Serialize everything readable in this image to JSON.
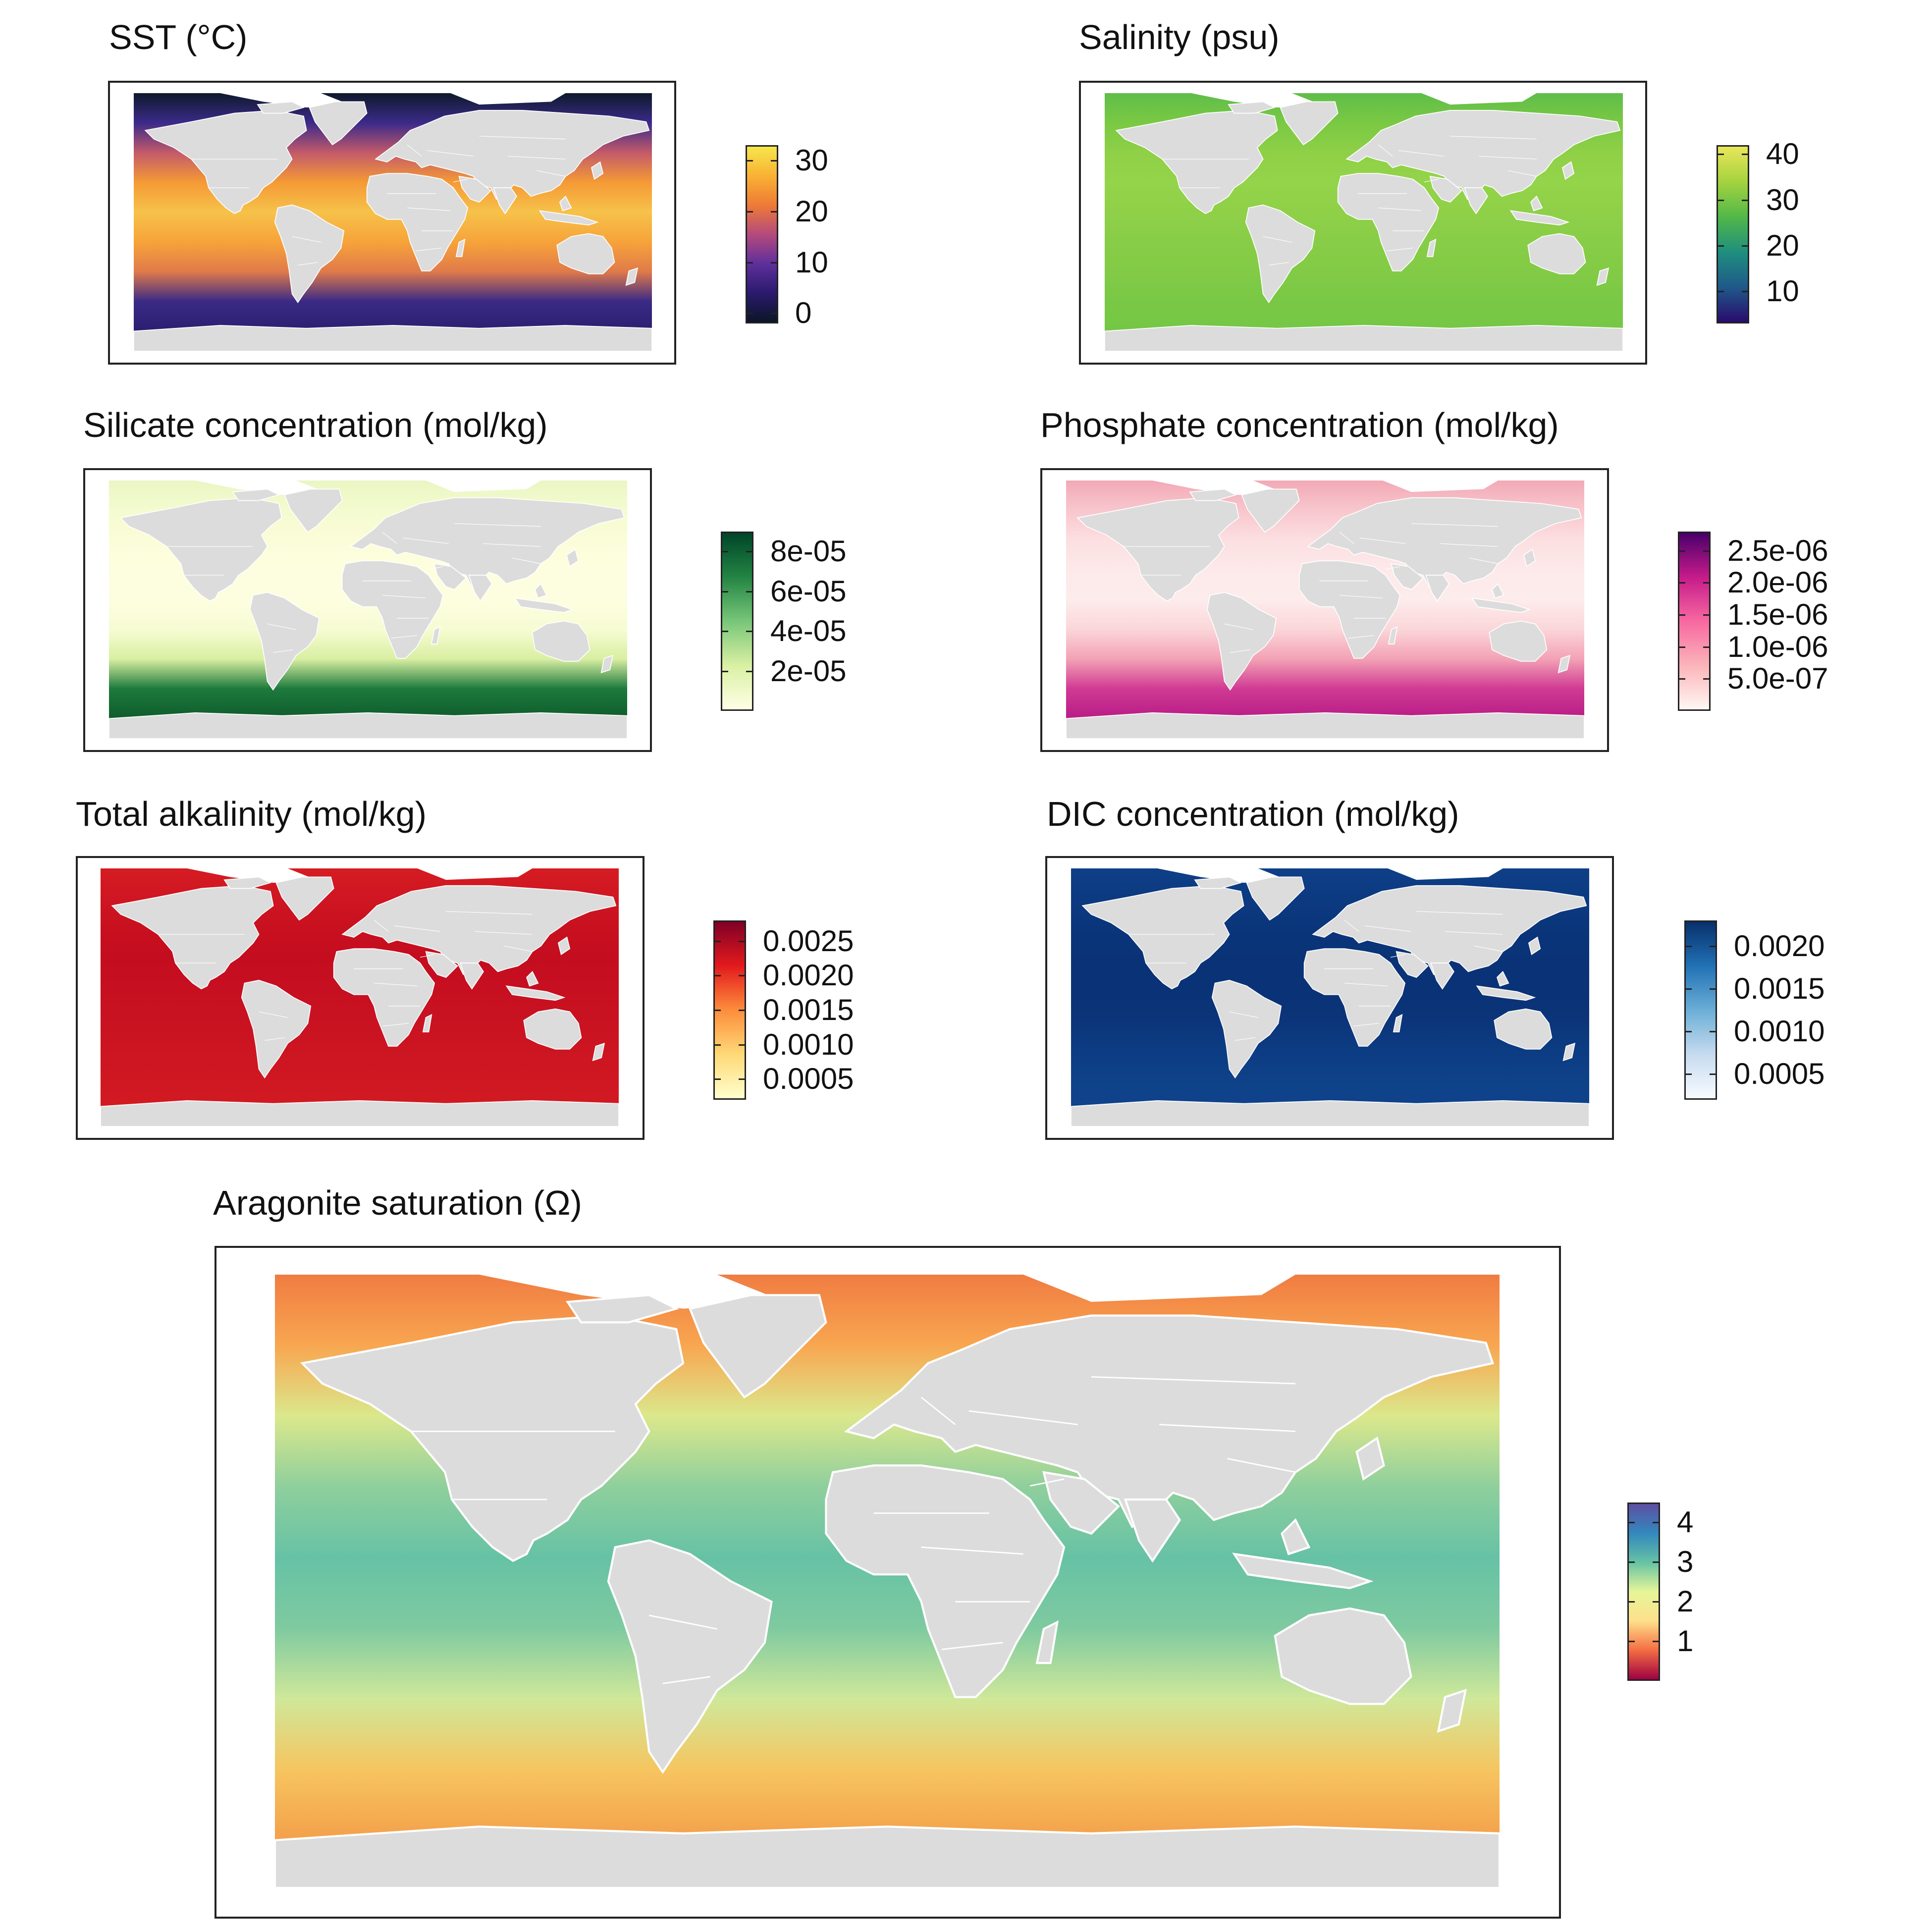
{
  "panels": [
    {
      "id": "sst",
      "title": "SST (°C)",
      "legend": {
        "ticks": [
          "30",
          "20",
          "10",
          "0"
        ],
        "values": [
          30,
          20,
          10,
          0
        ],
        "range": [
          -2,
          33
        ],
        "colors": [
          "#0b1526",
          "#2b1a6e",
          "#5f2f9c",
          "#b54a7c",
          "#ee7a35",
          "#f9b234",
          "#f6e64a"
        ]
      }
    },
    {
      "id": "salinity",
      "title": "Salinity (psu)",
      "legend": {
        "ticks": [
          "40",
          "30",
          "20",
          "10"
        ],
        "values": [
          40,
          30,
          20,
          10
        ],
        "range": [
          3,
          42
        ],
        "colors": [
          "#2a0b6e",
          "#1f5a8a",
          "#1f8f7e",
          "#52b848",
          "#a5d33f",
          "#e9e65a"
        ]
      }
    },
    {
      "id": "silicate",
      "title": "Silicate concentration (mol/kg)",
      "legend": {
        "ticks": [
          "8e-05",
          "6e-05",
          "4e-05",
          "2e-05"
        ],
        "values": [
          8e-05,
          6e-05,
          4e-05,
          2e-05
        ],
        "range": [
          0,
          9e-05
        ],
        "colors": [
          "#ffffe5",
          "#d9f0a3",
          "#78c679",
          "#238443",
          "#004529"
        ]
      }
    },
    {
      "id": "phosphate",
      "title": "Phosphate concentration (mol/kg)",
      "legend": {
        "ticks": [
          "2.5e-06",
          "2.0e-06",
          "1.5e-06",
          "1.0e-06",
          "5.0e-07"
        ],
        "values": [
          2.5e-06,
          2e-06,
          1.5e-06,
          1e-06,
          5e-07
        ],
        "range": [
          0,
          2.8e-06
        ],
        "colors": [
          "#fff7f3",
          "#fbb4b9",
          "#f768a1",
          "#c51b8a",
          "#49006a"
        ]
      }
    },
    {
      "id": "alkalinity",
      "title": "Total alkalinity (mol/kg)",
      "legend": {
        "ticks": [
          "0.0025",
          "0.0020",
          "0.0015",
          "0.0010",
          "0.0005"
        ],
        "values": [
          0.0025,
          0.002,
          0.0015,
          0.001,
          0.0005
        ],
        "range": [
          0.0002,
          0.0028
        ],
        "colors": [
          "#ffffcc",
          "#fed976",
          "#fd8d3c",
          "#e31a1c",
          "#800026"
        ]
      }
    },
    {
      "id": "dic",
      "title": "DIC concentration (mol/kg)",
      "legend": {
        "ticks": [
          "0.0020",
          "0.0015",
          "0.0010",
          "0.0005"
        ],
        "values": [
          0.002,
          0.0015,
          0.001,
          0.0005
        ],
        "range": [
          0.0002,
          0.0023
        ],
        "colors": [
          "#f7fbff",
          "#c6dbef",
          "#6baed6",
          "#2171b5",
          "#08306b"
        ]
      }
    },
    {
      "id": "aragonite",
      "title": "Aragonite saturation (Ω)",
      "legend": {
        "ticks": [
          "4",
          "3",
          "2",
          "1"
        ],
        "values": [
          4,
          3,
          2,
          1
        ],
        "range": [
          0,
          4.5
        ],
        "colors": [
          "#9e0142",
          "#f46d43",
          "#fee08b",
          "#e6f598",
          "#66c2a5",
          "#3288bd",
          "#5e4fa2"
        ]
      }
    }
  ],
  "map_fields": {
    "sst": [
      "#0e1a2b",
      "#3b2a8a",
      "#c35a6a",
      "#f59a35",
      "#f6c24a",
      "#f7a33a",
      "#e07a4a",
      "#3a2a86",
      "#2b1f70"
    ],
    "salinity": [
      "#5fbd4a",
      "#7ac943",
      "#8fd047",
      "#93d44a",
      "#8fd048",
      "#88cd47",
      "#82cb46",
      "#79c845",
      "#74c745"
    ],
    "silicate": [
      "#eaf6c3",
      "#f4fbcf",
      "#fbfdd9",
      "#fdfedf",
      "#fdfee0",
      "#f7fcd3",
      "#d9efa2",
      "#1d7a3c",
      "#0f5c2c"
    ],
    "phosphate": [
      "#f2a9b6",
      "#f8c6cd",
      "#fcdfe1",
      "#fde9ea",
      "#fdecec",
      "#fbd6d9",
      "#f3a2b5",
      "#d03a93",
      "#b81c86"
    ],
    "alkalinity": [
      "#d51c22",
      "#cf1622",
      "#c8101f",
      "#c40d1f",
      "#c60f20",
      "#c91221",
      "#cc1521",
      "#ce1721",
      "#d21a22"
    ],
    "dic": [
      "#0e3f87",
      "#0c3a81",
      "#0a357b",
      "#0a3377",
      "#0a3276",
      "#0b3479",
      "#0c3b82",
      "#0e4188",
      "#0f438b"
    ],
    "aragonite": [
      "#f07c42",
      "#f8a650",
      "#dbe88c",
      "#8fcf9d",
      "#66c2a5",
      "#7fcaa0",
      "#cfe89a",
      "#f6c560",
      "#f4a04a"
    ]
  }
}
